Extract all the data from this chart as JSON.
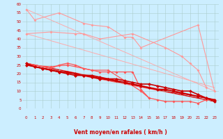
{
  "bg_color": "#cceeff",
  "grid_color": "#aacccc",
  "xlabel": "Vent moyen/en rafales ( km/h )",
  "xlim": [
    -0.5,
    23.5
  ],
  "ylim": [
    0,
    60
  ],
  "xticks": [
    0,
    1,
    2,
    3,
    4,
    5,
    6,
    7,
    8,
    9,
    10,
    11,
    12,
    13,
    14,
    15,
    16,
    17,
    18,
    19,
    20,
    21,
    22,
    23
  ],
  "yticks": [
    0,
    5,
    10,
    15,
    20,
    25,
    30,
    35,
    40,
    45,
    50,
    55,
    60
  ],
  "series": [
    {
      "color": "#ff9999",
      "lw": 0.8,
      "ms": 2.0,
      "x": [
        0,
        1,
        4,
        7,
        8,
        10,
        12,
        13,
        14,
        21,
        23
      ],
      "y": [
        57,
        51,
        55,
        49,
        48,
        47,
        41,
        41,
        35,
        48,
        10
      ]
    },
    {
      "color": "#ff9999",
      "lw": 0.8,
      "ms": 2.0,
      "x": [
        0,
        3,
        6,
        7,
        9,
        13,
        17,
        19,
        20,
        21,
        22
      ],
      "y": [
        43,
        44,
        43,
        43,
        40,
        43,
        35,
        30,
        26,
        22,
        12
      ]
    },
    {
      "color": "#ff5555",
      "lw": 0.9,
      "ms": 2.0,
      "x": [
        0,
        1,
        3,
        4,
        5,
        6,
        7,
        8,
        9,
        10,
        11,
        12,
        13,
        14,
        15
      ],
      "y": [
        26,
        25,
        23,
        25,
        26,
        25,
        23,
        22,
        21,
        21,
        21,
        21,
        21,
        11,
        6
      ]
    },
    {
      "color": "#ff5555",
      "lw": 0.9,
      "ms": 2.0,
      "x": [
        0,
        3,
        5,
        8,
        10,
        14,
        15,
        16,
        17,
        18,
        19,
        20,
        21,
        22,
        23
      ],
      "y": [
        25,
        24,
        25,
        22,
        22,
        10,
        6,
        5,
        4,
        4,
        4,
        4,
        3,
        5,
        5
      ]
    },
    {
      "color": "#cc0000",
      "lw": 1.2,
      "ms": 2.5,
      "x": [
        0,
        1,
        2,
        3,
        4,
        5,
        6,
        7,
        8,
        9,
        10,
        11,
        12,
        13,
        14,
        15,
        16,
        17,
        18,
        19,
        20,
        21,
        22,
        23
      ],
      "y": [
        26,
        24,
        23,
        22,
        21,
        21,
        20,
        19,
        19,
        18,
        17,
        17,
        16,
        15,
        14,
        14,
        13,
        12,
        11,
        10,
        10,
        8,
        6,
        4
      ]
    },
    {
      "color": "#cc0000",
      "lw": 1.2,
      "ms": 2.5,
      "x": [
        0,
        1,
        2,
        3,
        4,
        5,
        6,
        7,
        8,
        9,
        10,
        11,
        12,
        13,
        14,
        15,
        16,
        17,
        18,
        19,
        20,
        21,
        22,
        23
      ],
      "y": [
        25,
        24,
        23,
        22,
        21,
        20,
        19,
        19,
        18,
        17,
        17,
        16,
        15,
        14,
        13,
        12,
        11,
        11,
        10,
        9,
        8,
        7,
        6,
        5
      ]
    }
  ],
  "trend_lines": [
    {
      "color": "#ffaaaa",
      "lw": 0.7,
      "x0": 0,
      "y0": 57,
      "x1": 23,
      "y1": 10
    },
    {
      "color": "#ffaaaa",
      "lw": 0.7,
      "x0": 0,
      "y0": 43,
      "x1": 23,
      "y1": 12
    },
    {
      "color": "#ff7777",
      "lw": 0.7,
      "x0": 0,
      "y0": 26,
      "x1": 23,
      "y1": 5
    },
    {
      "color": "#ff7777",
      "lw": 0.7,
      "x0": 0,
      "y0": 25,
      "x1": 23,
      "y1": 4
    },
    {
      "color": "#cc0000",
      "lw": 0.8,
      "x0": 0,
      "y0": 26,
      "x1": 23,
      "y1": 4
    },
    {
      "color": "#cc0000",
      "lw": 0.8,
      "x0": 0,
      "y0": 25,
      "x1": 23,
      "y1": 5
    }
  ],
  "wind_arrows": [
    "↗",
    "↗",
    "↗",
    "↗",
    "↗",
    "↗",
    "↗",
    "↗",
    "↗",
    "↗",
    "↗",
    "↗",
    "↗",
    "↗",
    "↙",
    "↓",
    "↓",
    "↘",
    "→",
    "↘",
    "↘",
    "↙",
    "↖",
    "↑"
  ]
}
